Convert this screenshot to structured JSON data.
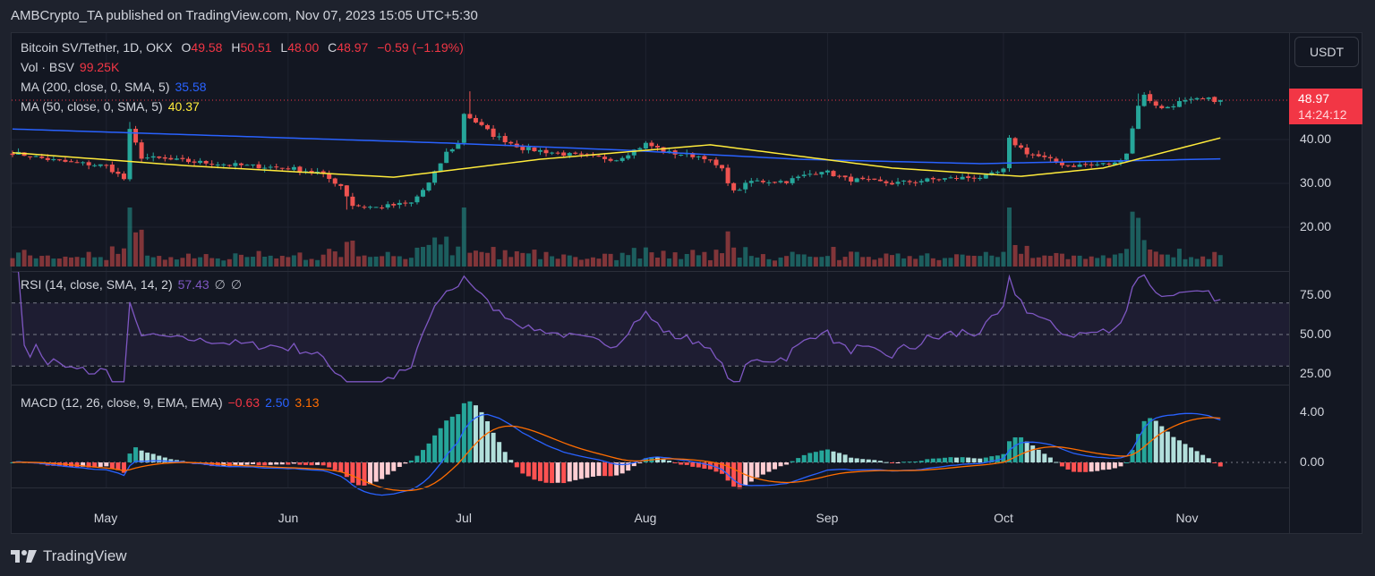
{
  "published_line": "AMBCrypto_TA published on TradingView.com, Nov 07, 2023 15:05 UTC+5:30",
  "legend": {
    "symbol": "Bitcoin SV/Tether, 1D, OKX",
    "o_label": "O",
    "open": "49.58",
    "h_label": "H",
    "high": "50.51",
    "l_label": "L",
    "low": "48.00",
    "c_label": "C",
    "close": "48.97",
    "change": "−0.59 (−1.19%)",
    "vol_label": "Vol · BSV",
    "vol_value": "99.25K",
    "ma200_label": "MA (200, close, 0, SMA, 5)",
    "ma200_value": "35.58",
    "ma50_label": "MA (50, close, 0, SMA, 5)",
    "ma50_value": "40.37",
    "rsi_label": "RSI (14, close, SMA, 14, 2)",
    "rsi_value": "57.43",
    "rsi_extra1": "∅",
    "rsi_extra2": "∅",
    "macd_label": "MACD (12, 26, close, 9, EMA, EMA)",
    "macd_hist": "−0.63",
    "macd_line": "2.50",
    "macd_signal": "3.13"
  },
  "currency_button": "USDT",
  "last_price": {
    "price": "48.97",
    "countdown": "14:24:12"
  },
  "footer_logo": "TradingView",
  "colors": {
    "up": "#26a69a",
    "down": "#ef5350",
    "ma200": "#2962ff",
    "ma50": "#ffeb3b",
    "rsi": "#7e57c2",
    "macd": "#2962ff",
    "signal": "#ff6d00"
  },
  "chart_data": {
    "type": "candlestick",
    "title": "Bitcoin SV/Tether, 1D, OKX",
    "start_date": "2023-04-15",
    "end_date": "2023-11-07",
    "price_ticks": [
      "40.00",
      "30.00",
      "20.00"
    ],
    "rsi_ticks": [
      "75.00",
      "50.00",
      "25.00"
    ],
    "macd_ticks": [
      "4.00",
      "0.00"
    ],
    "x_ticks": [
      {
        "label": "May",
        "day": 16
      },
      {
        "label": "Jun",
        "day": 47
      },
      {
        "label": "Jul",
        "day": 77
      },
      {
        "label": "Aug",
        "day": 108
      },
      {
        "label": "Sep",
        "day": 139
      },
      {
        "label": "Oct",
        "day": 169
      },
      {
        "label": "Nov",
        "day": 200
      }
    ],
    "close_keypoints": [
      [
        0,
        37
      ],
      [
        8,
        35
      ],
      [
        16,
        34
      ],
      [
        19,
        31
      ],
      [
        20,
        42
      ],
      [
        22,
        36
      ],
      [
        30,
        35
      ],
      [
        40,
        34
      ],
      [
        47,
        33.5
      ],
      [
        52,
        32.5
      ],
      [
        56,
        29.5
      ],
      [
        58,
        25
      ],
      [
        62,
        24.5
      ],
      [
        68,
        25.5
      ],
      [
        71,
        30
      ],
      [
        74,
        37
      ],
      [
        76,
        39
      ],
      [
        77,
        46
      ],
      [
        79,
        44
      ],
      [
        82,
        41
      ],
      [
        87,
        38
      ],
      [
        95,
        36.5
      ],
      [
        103,
        35.5
      ],
      [
        108,
        39
      ],
      [
        112,
        37
      ],
      [
        118,
        36
      ],
      [
        121,
        33
      ],
      [
        123,
        28
      ],
      [
        126,
        30.5
      ],
      [
        132,
        30.5
      ],
      [
        138,
        33
      ],
      [
        142,
        31
      ],
      [
        150,
        30
      ],
      [
        158,
        31
      ],
      [
        166,
        31.5
      ],
      [
        169,
        33
      ],
      [
        170,
        40
      ],
      [
        173,
        37
      ],
      [
        180,
        34
      ],
      [
        188,
        34.5
      ],
      [
        190,
        37
      ],
      [
        192,
        48
      ],
      [
        193,
        50
      ],
      [
        196,
        47
      ],
      [
        199,
        48.5
      ],
      [
        203,
        49.2
      ],
      [
        206,
        48.97
      ]
    ],
    "ma50_keypoints": [
      [
        0,
        37
      ],
      [
        30,
        34
      ],
      [
        65,
        31.4
      ],
      [
        90,
        35.5
      ],
      [
        119,
        38.8
      ],
      [
        150,
        33.5
      ],
      [
        172,
        31.6
      ],
      [
        186,
        33.5
      ],
      [
        206,
        40.37
      ]
    ],
    "ma200_keypoints": [
      [
        0,
        42.4
      ],
      [
        74,
        39.2
      ],
      [
        104,
        37.6
      ],
      [
        134,
        35.5
      ],
      [
        165,
        34.5
      ],
      [
        206,
        35.58
      ]
    ],
    "rsi_bands": [
      70,
      50,
      30
    ],
    "rsi_last": 57.43,
    "macd_last": {
      "macd": 2.5,
      "signal": 3.13,
      "histogram": -0.63
    },
    "volume_last": "99.25K"
  }
}
